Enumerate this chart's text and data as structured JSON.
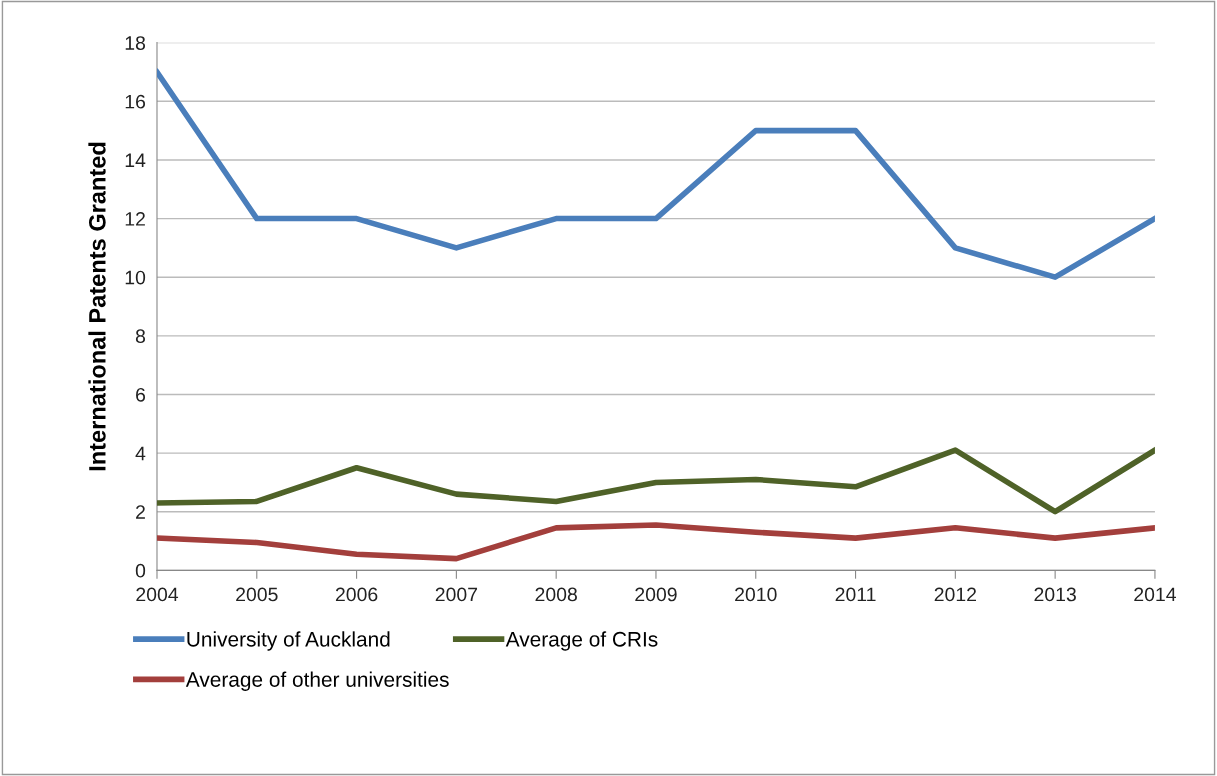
{
  "chart_data": {
    "type": "line",
    "ylabel": "International Patents Granted",
    "x": [
      2004,
      2005,
      2006,
      2007,
      2008,
      2009,
      2010,
      2011,
      2012,
      2013,
      2014
    ],
    "xlim": [
      2004,
      2014
    ],
    "xticks": [
      2004,
      2005,
      2006,
      2007,
      2008,
      2009,
      2010,
      2011,
      2012,
      2013,
      2014
    ],
    "ylim": [
      0,
      18
    ],
    "yticks": [
      0,
      2,
      4,
      6,
      8,
      10,
      12,
      14,
      16,
      18
    ],
    "grid": "y",
    "legend": "bottom",
    "marker": "none",
    "line_style": "solid",
    "series": [
      {
        "name": "University of Auckland",
        "color": "#4a7ebb",
        "values": [
          17,
          12,
          12,
          11,
          12,
          12,
          15,
          15,
          11,
          10,
          12
        ]
      },
      {
        "name": "Average of other universities",
        "color": "#a33f3c",
        "values": [
          1.1,
          0.95,
          0.55,
          0.4,
          1.45,
          1.55,
          1.3,
          1.1,
          1.45,
          1.1,
          1.45
        ]
      },
      {
        "name": "Average of CRIs",
        "color": "#4f6228",
        "values": [
          2.3,
          2.35,
          3.5,
          2.6,
          2.35,
          3.0,
          3.1,
          2.85,
          4.1,
          2.0,
          4.1
        ]
      }
    ]
  }
}
